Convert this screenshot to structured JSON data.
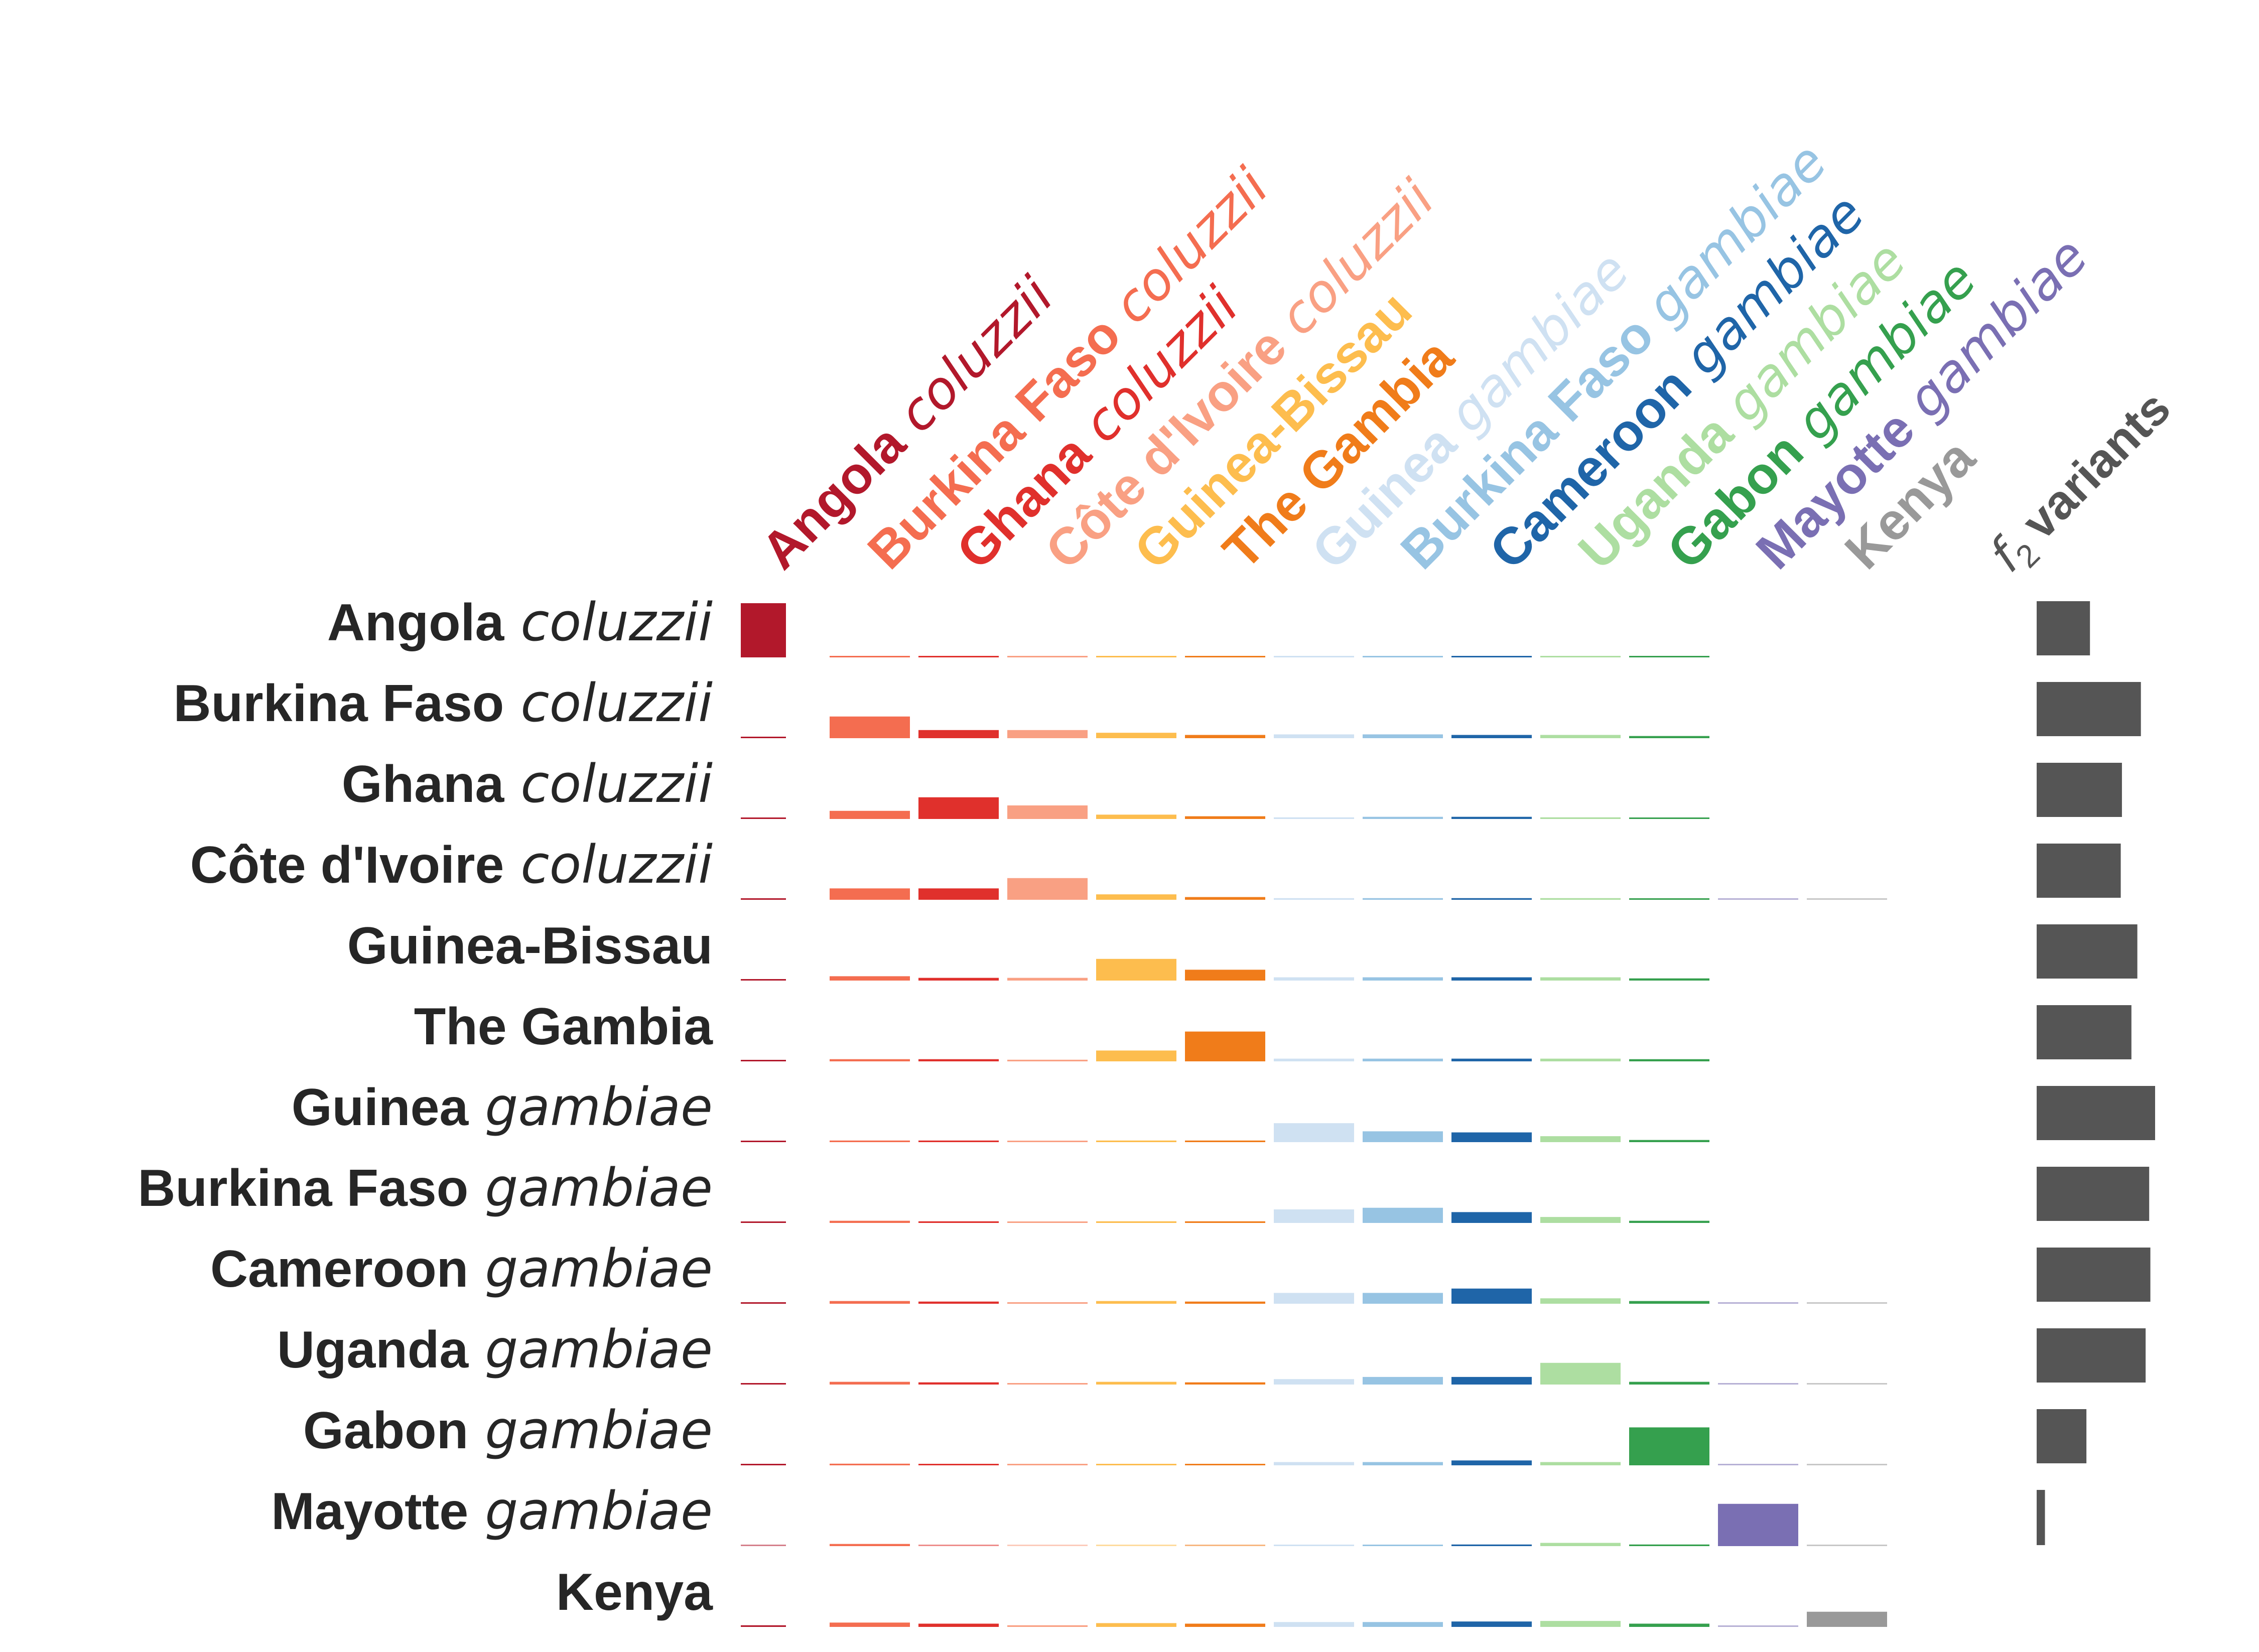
{
  "chart_data": {
    "type": "heatmap",
    "title": "",
    "populations": [
      {
        "name": "Angola",
        "species": "coluzzii",
        "color": "#b2182b"
      },
      {
        "name": "Burkina Faso",
        "species": "coluzzii",
        "color": "#f46d50"
      },
      {
        "name": "Ghana",
        "species": "coluzzii",
        "color": "#e0302c"
      },
      {
        "name": "Côte d'Ivoire",
        "species": "coluzzii",
        "color": "#f9a083"
      },
      {
        "name": "Guinea-Bissau",
        "species": "",
        "color": "#fdbd4e"
      },
      {
        "name": "The Gambia",
        "species": "",
        "color": "#f07c1a"
      },
      {
        "name": "Guinea",
        "species": "gambiae",
        "color": "#cfe1f2"
      },
      {
        "name": "Burkina Faso",
        "species": "gambiae",
        "color": "#97c4e3"
      },
      {
        "name": "Cameroon",
        "species": "gambiae",
        "color": "#1f65a8"
      },
      {
        "name": "Uganda",
        "species": "gambiae",
        "color": "#addea1"
      },
      {
        "name": "Gabon",
        "species": "gambiae",
        "color": "#35a04e"
      },
      {
        "name": "Mayotte",
        "species": "gambiae",
        "color": "#7a6fb3"
      },
      {
        "name": "Kenya",
        "species": "",
        "color": "#999999"
      }
    ],
    "ncols_per_row": [
      11,
      11,
      11,
      13,
      11,
      11,
      11,
      11,
      13,
      13,
      13,
      13,
      13
    ],
    "matrix": [
      [
        1.0,
        0.02,
        0.02,
        0.02,
        0.02,
        0.02,
        0.02,
        0.02,
        0.02,
        0.02,
        0.02,
        0,
        0
      ],
      [
        0.02,
        0.4,
        0.15,
        0.15,
        0.1,
        0.06,
        0.07,
        0.07,
        0.06,
        0.06,
        0.04,
        0,
        0
      ],
      [
        0.02,
        0.15,
        0.4,
        0.25,
        0.08,
        0.05,
        0.03,
        0.04,
        0.04,
        0.03,
        0.02,
        0,
        0
      ],
      [
        0.02,
        0.21,
        0.21,
        0.4,
        0.1,
        0.05,
        0.03,
        0.03,
        0.03,
        0.03,
        0.02,
        0.01,
        0.01
      ],
      [
        0.02,
        0.08,
        0.05,
        0.05,
        0.4,
        0.2,
        0.06,
        0.06,
        0.06,
        0.06,
        0.04,
        0,
        0
      ],
      [
        0.02,
        0.04,
        0.04,
        0.03,
        0.2,
        0.55,
        0.05,
        0.05,
        0.05,
        0.05,
        0.04,
        0,
        0
      ],
      [
        0.02,
        0.03,
        0.03,
        0.02,
        0.03,
        0.03,
        0.35,
        0.2,
        0.18,
        0.11,
        0.04,
        0,
        0
      ],
      [
        0.02,
        0.04,
        0.03,
        0.02,
        0.03,
        0.03,
        0.25,
        0.28,
        0.2,
        0.11,
        0.04,
        0,
        0
      ],
      [
        0.02,
        0.05,
        0.04,
        0.02,
        0.05,
        0.04,
        0.2,
        0.2,
        0.28,
        0.1,
        0.05,
        0.01,
        0.01
      ],
      [
        0.02,
        0.05,
        0.04,
        0.02,
        0.05,
        0.04,
        0.1,
        0.14,
        0.14,
        0.4,
        0.05,
        0.01,
        0.01
      ],
      [
        0.02,
        0.03,
        0.02,
        0.02,
        0.02,
        0.02,
        0.06,
        0.06,
        0.09,
        0.06,
        0.7,
        0.01,
        0.01
      ],
      [
        0.01,
        0.04,
        0.01,
        0.01,
        0.01,
        0.01,
        0.02,
        0.02,
        0.03,
        0.06,
        0.03,
        0.78,
        0.01
      ],
      [
        0.03,
        0.08,
        0.06,
        0.03,
        0.07,
        0.06,
        0.09,
        0.09,
        0.1,
        0.11,
        0.06,
        0.01,
        0.28
      ]
    ],
    "f2_label_italic": "f",
    "f2_label_subscript": "2",
    "f2_label_text": "variants",
    "f2_color": "#555555",
    "f2_values": [
      0.45,
      0.88,
      0.72,
      0.71,
      0.85,
      0.8,
      1.0,
      0.95,
      0.96,
      0.92,
      0.42,
      0.07,
      0
    ],
    "label_color": "#262626"
  }
}
